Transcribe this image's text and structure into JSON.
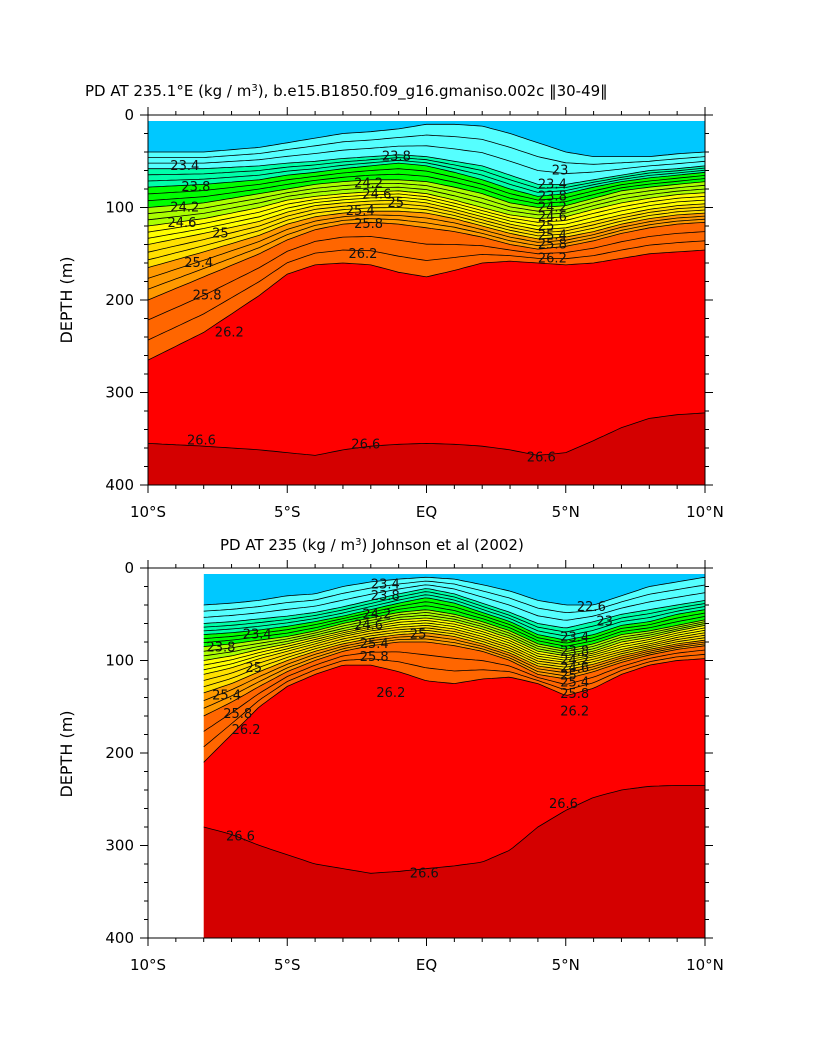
{
  "chart_data": [
    {
      "type": "contour",
      "title": "PD AT 235.1°E (kg / m³), b.e15.B1850.f09_g16.gmaniso.002c ‌30-49‌",
      "title_text": "PD AT 235.1°E (kg / m",
      "title_sup": "3",
      "title_rest": "), b.e15.B1850.f09_g16.gmaniso.002c ‖30-49‖",
      "ylabel": "DEPTH (m)",
      "xlim": [
        -10,
        10
      ],
      "ylim": [
        400,
        0
      ],
      "x_ticks": [
        -10,
        -5,
        0,
        5,
        10
      ],
      "x_tick_labels": [
        "10°S",
        "5°S",
        "EQ",
        "5°N",
        "10°N"
      ],
      "y_ticks": [
        0,
        100,
        200,
        300,
        400
      ],
      "y_tick_labels": [
        "0",
        "100",
        "200",
        "300",
        "400"
      ],
      "data_x_start": -10,
      "contour_levels": [
        22.6,
        22.8,
        23,
        23.2,
        23.4,
        23.6,
        23.8,
        24,
        24.2,
        24.4,
        24.6,
        24.8,
        25,
        25.2,
        25.4,
        25.6,
        25.8,
        26,
        26.2,
        26.6
      ],
      "isopycnal_depths": {
        "x": [
          -10,
          -8,
          -6,
          -5,
          -4,
          -3,
          -2,
          -1,
          0,
          1,
          2,
          3,
          4,
          5,
          6,
          7,
          8,
          9,
          10
        ],
        "levels": [
          {
            "sigma": 23.0,
            "depth": [
              40,
              40,
              35,
              30,
              25,
              20,
              18,
              15,
              10,
              10,
              12,
              20,
              30,
              40,
              45,
              45,
              45,
              42,
              40
            ]
          },
          {
            "sigma": 23.4,
            "depth": [
              58,
              58,
              55,
              52,
              50,
              47,
              45,
              43,
              45,
              50,
              55,
              65,
              75,
              75,
              70,
              65,
              60,
              58,
              55
            ]
          },
          {
            "sigma": 23.8,
            "depth": [
              78,
              75,
              70,
              65,
              62,
              58,
              55,
              52,
              55,
              62,
              70,
              80,
              88,
              85,
              78,
              72,
              68,
              65,
              62
            ]
          },
          {
            "sigma": 24.2,
            "depth": [
              100,
              95,
              85,
              80,
              75,
              72,
              70,
              70,
              72,
              78,
              85,
              95,
              100,
              98,
              90,
              82,
              78,
              75,
              72
            ]
          },
          {
            "sigma": 24.6,
            "depth": [
              120,
              112,
              100,
              92,
              88,
              85,
              83,
              82,
              85,
              92,
              100,
              108,
              112,
              110,
              102,
              95,
              90,
              86,
              84
            ]
          },
          {
            "sigma": 25.0,
            "depth": [
              140,
              128,
              115,
              105,
              98,
              95,
              93,
              92,
              95,
              102,
              110,
              118,
              124,
              122,
              115,
              108,
              102,
              98,
              96
            ]
          },
          {
            "sigma": 25.4,
            "depth": [
              165,
              148,
              130,
              118,
              110,
              106,
              104,
              104,
              106,
              112,
              120,
              128,
              134,
              132,
              126,
              118,
              112,
              108,
              106
            ]
          },
          {
            "sigma": 25.8,
            "depth": [
              200,
              175,
              150,
              135,
              124,
              118,
              116,
              118,
              122,
              126,
              132,
              140,
              145,
              142,
              136,
              128,
              122,
              118,
              116
            ]
          },
          {
            "sigma": 26.2,
            "depth": [
              265,
              235,
              195,
              172,
              162,
              160,
              162,
              170,
              175,
              168,
              160,
              158,
              160,
              162,
              160,
              155,
              150,
              148,
              146
            ]
          },
          {
            "sigma": 26.6,
            "depth": [
              355,
              358,
              362,
              365,
              368,
              362,
              358,
              356,
              355,
              356,
              358,
              362,
              368,
              365,
              352,
              338,
              328,
              324,
              322
            ]
          }
        ]
      },
      "contour_labels": [
        {
          "text": "23.4",
          "x": -9.2,
          "y": 55
        },
        {
          "text": "23.8",
          "x": -8.8,
          "y": 78
        },
        {
          "text": "24.2",
          "x": -9.2,
          "y": 100
        },
        {
          "text": "24.6",
          "x": -9.3,
          "y": 117
        },
        {
          "text": "25",
          "x": -7.7,
          "y": 128
        },
        {
          "text": "25.4",
          "x": -8.7,
          "y": 160
        },
        {
          "text": "25.8",
          "x": -8.4,
          "y": 195
        },
        {
          "text": "26.2",
          "x": -7.6,
          "y": 235
        },
        {
          "text": "26.6",
          "x": -8.6,
          "y": 352
        },
        {
          "text": "23.8",
          "x": -1.6,
          "y": 45
        },
        {
          "text": "24.2",
          "x": -2.6,
          "y": 74
        },
        {
          "text": "24.6",
          "x": -2.3,
          "y": 86
        },
        {
          "text": "25",
          "x": -1.4,
          "y": 95
        },
        {
          "text": "25.4",
          "x": -2.9,
          "y": 104
        },
        {
          "text": "25.8",
          "x": -2.6,
          "y": 118
        },
        {
          "text": "26.2",
          "x": -2.8,
          "y": 150
        },
        {
          "text": "26.6",
          "x": -2.7,
          "y": 356
        },
        {
          "text": "23",
          "x": 4.5,
          "y": 60
        },
        {
          "text": "23.4",
          "x": 4.0,
          "y": 75
        },
        {
          "text": "23.8",
          "x": 4.0,
          "y": 88
        },
        {
          "text": "24.2",
          "x": 4.0,
          "y": 100
        },
        {
          "text": "24.6",
          "x": 4.0,
          "y": 110
        },
        {
          "text": "25",
          "x": 4.0,
          "y": 120
        },
        {
          "text": "25.4",
          "x": 4.0,
          "y": 130
        },
        {
          "text": "25.8",
          "x": 4.0,
          "y": 140
        },
        {
          "text": "26.2",
          "x": 4.0,
          "y": 155
        },
        {
          "text": "26.6",
          "x": 3.6,
          "y": 370
        }
      ]
    },
    {
      "type": "contour",
      "title_text": "PD AT 235 (kg / m",
      "title_sup": "3",
      "title_rest": ") Johnson et al (2002)",
      "ylabel": "DEPTH (m)",
      "xlim": [
        -10,
        10
      ],
      "ylim": [
        400,
        0
      ],
      "x_ticks": [
        -10,
        -5,
        0,
        5,
        10
      ],
      "x_tick_labels": [
        "10°S",
        "5°S",
        "EQ",
        "5°N",
        "10°N"
      ],
      "y_ticks": [
        0,
        100,
        200,
        300,
        400
      ],
      "y_tick_labels": [
        "0",
        "100",
        "200",
        "300",
        "400"
      ],
      "data_x_start": -8,
      "contour_levels": [
        22.6,
        22.8,
        23,
        23.2,
        23.4,
        23.6,
        23.8,
        24,
        24.2,
        24.4,
        24.6,
        24.8,
        25,
        25.2,
        25.4,
        25.6,
        25.8,
        26,
        26.2,
        26.6
      ],
      "isopycnal_depths": {
        "x": [
          -8,
          -7,
          -6,
          -5,
          -4,
          -3,
          -2,
          -1,
          0,
          1,
          2,
          3,
          4,
          5,
          6,
          7,
          8,
          9,
          10
        ],
        "levels": [
          {
            "sigma": 23.0,
            "depth": [
              40,
              38,
              35,
              30,
              28,
              20,
              15,
              12,
              10,
              12,
              18,
              25,
              35,
              40,
              40,
              30,
              20,
              15,
              10
            ]
          },
          {
            "sigma": 23.4,
            "depth": [
              60,
              58,
              55,
              52,
              48,
              42,
              35,
              28,
              22,
              28,
              38,
              48,
              60,
              65,
              58,
              50,
              45,
              40,
              35
            ]
          },
          {
            "sigma": 23.8,
            "depth": [
              72,
              70,
              67,
              63,
              58,
              52,
              45,
              38,
              32,
              38,
              48,
              58,
              72,
              78,
              72,
              62,
              58,
              50,
              45
            ]
          },
          {
            "sigma": 24.2,
            "depth": [
              85,
              82,
              78,
              74,
              68,
              60,
              54,
              48,
              45,
              50,
              58,
              68,
              82,
              88,
              82,
              72,
              68,
              62,
              56
            ]
          },
          {
            "sigma": 24.6,
            "depth": [
              100,
              95,
              88,
              82,
              75,
              68,
              62,
              56,
              54,
              58,
              66,
              76,
              90,
              95,
              90,
              80,
              75,
              68,
              62
            ]
          },
          {
            "sigma": 25.0,
            "depth": [
              115,
              108,
              98,
              90,
              82,
              74,
              68,
              64,
              62,
              66,
              74,
              84,
              98,
              102,
              96,
              88,
              82,
              75,
              70
            ]
          },
          {
            "sigma": 25.4,
            "depth": [
              135,
              125,
              112,
              100,
              90,
              82,
              76,
              72,
              70,
              74,
              82,
              92,
              106,
              110,
              104,
              95,
              88,
              82,
              78
            ]
          },
          {
            "sigma": 25.8,
            "depth": [
              160,
              145,
              128,
              112,
              100,
              90,
              84,
              80,
              80,
              84,
              90,
              100,
              115,
              120,
              112,
              102,
              94,
              88,
              84
            ]
          },
          {
            "sigma": 26.2,
            "depth": [
              210,
              180,
              150,
              128,
              115,
              105,
              105,
              112,
              122,
              125,
              120,
              118,
              125,
              138,
              130,
              115,
              105,
              100,
              98
            ]
          },
          {
            "sigma": 26.6,
            "depth": [
              280,
              288,
              300,
              310,
              320,
              325,
              330,
              328,
              325,
              322,
              318,
              305,
              280,
              262,
              248,
              240,
              236,
              235,
              235
            ]
          }
        ]
      },
      "contour_labels": [
        {
          "text": "23.4",
          "x": -6.6,
          "y": 72
        },
        {
          "text": "23.8",
          "x": -7.9,
          "y": 86
        },
        {
          "text": "25",
          "x": -6.5,
          "y": 108
        },
        {
          "text": "25.4",
          "x": -7.7,
          "y": 138
        },
        {
          "text": "25.8",
          "x": -7.3,
          "y": 158
        },
        {
          "text": "26.2",
          "x": -7.0,
          "y": 175
        },
        {
          "text": "26.6",
          "x": -7.2,
          "y": 290
        },
        {
          "text": "23.4",
          "x": -2.0,
          "y": 18
        },
        {
          "text": "23.8",
          "x": -2.0,
          "y": 30
        },
        {
          "text": "24.2",
          "x": -2.3,
          "y": 50
        },
        {
          "text": "24.6",
          "x": -2.6,
          "y": 62
        },
        {
          "text": "25",
          "x": -0.6,
          "y": 72
        },
        {
          "text": "25.4",
          "x": -2.4,
          "y": 82
        },
        {
          "text": "25.8",
          "x": -2.4,
          "y": 96
        },
        {
          "text": "26.2",
          "x": -1.8,
          "y": 135
        },
        {
          "text": "26.6",
          "x": -0.6,
          "y": 330
        },
        {
          "text": "22.6",
          "x": 5.4,
          "y": 42
        },
        {
          "text": "23",
          "x": 6.1,
          "y": 58
        },
        {
          "text": "23.4",
          "x": 4.8,
          "y": 75
        },
        {
          "text": "23.8",
          "x": 4.8,
          "y": 90
        },
        {
          "text": "24.2",
          "x": 4.8,
          "y": 100
        },
        {
          "text": "24.6",
          "x": 4.8,
          "y": 108
        },
        {
          "text": "25",
          "x": 4.8,
          "y": 116
        },
        {
          "text": "25.4",
          "x": 4.8,
          "y": 124
        },
        {
          "text": "25.8",
          "x": 4.8,
          "y": 136
        },
        {
          "text": "26.2",
          "x": 4.8,
          "y": 155
        },
        {
          "text": "26.6",
          "x": 4.4,
          "y": 255
        }
      ]
    }
  ],
  "colormap": [
    "#cc00ff",
    "#9900ff",
    "#5c00ff",
    "#0000ff",
    "#0050ff",
    "#0096ff",
    "#00c8ff",
    "#00e0ff",
    "#55ffff",
    "#00ffaa",
    "#00ff00",
    "#aaff00",
    "#ffff00",
    "#ffe000",
    "#ffc000",
    "#ff9900",
    "#ff6600",
    "#ff3c00",
    "#ff0000",
    "#d40000"
  ]
}
